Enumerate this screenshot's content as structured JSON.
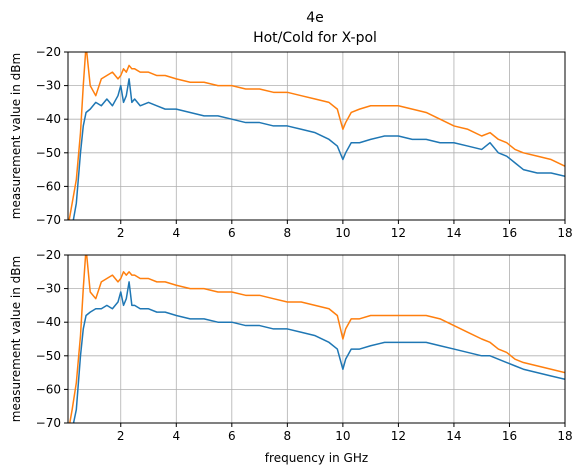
{
  "figure": {
    "title": "4e",
    "subtitle": "Hot/Cold for X-pol"
  },
  "colors": {
    "series_blue": "#1f77b4",
    "series_orange": "#ff7f0e",
    "grid": "#b0b0b0",
    "axis": "#000000"
  },
  "chart_data": [
    {
      "type": "line",
      "ylabel": "measurement value in dBm",
      "xlabel": "",
      "xlim": [
        0.1,
        18
      ],
      "ylim": [
        -70,
        -20
      ],
      "xticks": [
        2,
        4,
        6,
        8,
        10,
        12,
        14,
        16,
        18
      ],
      "yticks": [
        -70,
        -60,
        -50,
        -40,
        -30,
        -20
      ],
      "grid": true,
      "series": [
        {
          "color": "#1f77b4",
          "x": [
            0.1,
            0.25,
            0.4,
            0.55,
            0.65,
            0.75,
            0.9,
            1.1,
            1.3,
            1.5,
            1.7,
            1.9,
            2.0,
            2.1,
            2.2,
            2.3,
            2.4,
            2.5,
            2.7,
            3.0,
            3.3,
            3.6,
            4.0,
            4.5,
            5.0,
            5.5,
            6.0,
            6.5,
            7.0,
            7.5,
            8.0,
            8.5,
            9.0,
            9.5,
            9.8,
            10.0,
            10.1,
            10.3,
            10.6,
            11.0,
            11.5,
            12.0,
            12.5,
            13.0,
            13.5,
            14.0,
            14.5,
            15.0,
            15.3,
            15.6,
            15.9,
            16.2,
            16.5,
            17.0,
            17.5,
            18.0
          ],
          "y": [
            -75,
            -72,
            -65,
            -50,
            -42,
            -38,
            -37,
            -35,
            -36,
            -34,
            -36,
            -33,
            -30,
            -35,
            -33,
            -28,
            -35,
            -34,
            -36,
            -35,
            -36,
            -37,
            -37,
            -38,
            -39,
            -39,
            -40,
            -41,
            -41,
            -42,
            -42,
            -43,
            -44,
            -46,
            -48,
            -52,
            -50,
            -47,
            -47,
            -46,
            -45,
            -45,
            -46,
            -46,
            -47,
            -47,
            -48,
            -49,
            -47,
            -50,
            -51,
            -53,
            -55,
            -56,
            -56,
            -57
          ]
        },
        {
          "color": "#ff7f0e",
          "x": [
            0.1,
            0.25,
            0.4,
            0.55,
            0.65,
            0.75,
            0.9,
            1.1,
            1.3,
            1.5,
            1.7,
            1.9,
            2.0,
            2.1,
            2.2,
            2.3,
            2.4,
            2.5,
            2.7,
            3.0,
            3.3,
            3.6,
            4.0,
            4.5,
            5.0,
            5.5,
            6.0,
            6.5,
            7.0,
            7.5,
            8.0,
            8.5,
            9.0,
            9.5,
            9.8,
            10.0,
            10.1,
            10.3,
            10.6,
            11.0,
            11.5,
            12.0,
            12.5,
            13.0,
            13.5,
            14.0,
            14.5,
            15.0,
            15.3,
            15.6,
            15.9,
            16.2,
            16.5,
            17.0,
            17.5,
            18.0
          ],
          "y": [
            -72,
            -65,
            -58,
            -44,
            -30,
            -18,
            -30,
            -33,
            -28,
            -27,
            -26,
            -28,
            -27,
            -25,
            -26,
            -24,
            -25,
            -25,
            -26,
            -26,
            -27,
            -27,
            -28,
            -29,
            -29,
            -30,
            -30,
            -31,
            -31,
            -32,
            -32,
            -33,
            -34,
            -35,
            -37,
            -43,
            -41,
            -38,
            -37,
            -36,
            -36,
            -36,
            -37,
            -38,
            -40,
            -42,
            -43,
            -45,
            -44,
            -46,
            -47,
            -49,
            -50,
            -51,
            -52,
            -54
          ]
        }
      ]
    },
    {
      "type": "line",
      "ylabel": "measurement value in dBm",
      "xlabel": "frequency in GHz",
      "xlim": [
        0.1,
        18
      ],
      "ylim": [
        -70,
        -20
      ],
      "xticks": [
        2,
        4,
        6,
        8,
        10,
        12,
        14,
        16,
        18
      ],
      "yticks": [
        -70,
        -60,
        -50,
        -40,
        -30,
        -20
      ],
      "grid": true,
      "series": [
        {
          "color": "#1f77b4",
          "x": [
            0.1,
            0.25,
            0.4,
            0.55,
            0.65,
            0.75,
            0.9,
            1.1,
            1.3,
            1.5,
            1.7,
            1.9,
            2.0,
            2.1,
            2.2,
            2.3,
            2.4,
            2.5,
            2.7,
            3.0,
            3.3,
            3.6,
            4.0,
            4.5,
            5.0,
            5.5,
            6.0,
            6.5,
            7.0,
            7.5,
            8.0,
            8.5,
            9.0,
            9.5,
            9.8,
            10.0,
            10.1,
            10.3,
            10.6,
            11.0,
            11.5,
            12.0,
            12.5,
            13.0,
            13.5,
            14.0,
            14.5,
            15.0,
            15.3,
            15.6,
            15.9,
            16.2,
            16.5,
            17.0,
            17.5,
            18.0
          ],
          "y": [
            -76,
            -72,
            -66,
            -50,
            -42,
            -38,
            -37,
            -36,
            -36,
            -35,
            -36,
            -34,
            -31,
            -35,
            -33,
            -28,
            -35,
            -35,
            -36,
            -36,
            -37,
            -37,
            -38,
            -39,
            -39,
            -40,
            -40,
            -41,
            -41,
            -42,
            -42,
            -43,
            -44,
            -46,
            -48,
            -54,
            -51,
            -48,
            -48,
            -47,
            -46,
            -46,
            -46,
            -46,
            -47,
            -48,
            -49,
            -50,
            -50,
            -51,
            -52,
            -53,
            -54,
            -55,
            -56,
            -57
          ]
        },
        {
          "color": "#ff7f0e",
          "x": [
            0.1,
            0.25,
            0.4,
            0.55,
            0.65,
            0.75,
            0.9,
            1.1,
            1.3,
            1.5,
            1.7,
            1.9,
            2.0,
            2.1,
            2.2,
            2.3,
            2.4,
            2.5,
            2.7,
            3.0,
            3.3,
            3.6,
            4.0,
            4.5,
            5.0,
            5.5,
            6.0,
            6.5,
            7.0,
            7.5,
            8.0,
            8.5,
            9.0,
            9.5,
            9.8,
            10.0,
            10.1,
            10.3,
            10.6,
            11.0,
            11.5,
            12.0,
            12.5,
            13.0,
            13.5,
            14.0,
            14.5,
            15.0,
            15.3,
            15.6,
            15.9,
            16.2,
            16.5,
            17.0,
            17.5,
            18.0
          ],
          "y": [
            -73,
            -66,
            -58,
            -44,
            -30,
            -18,
            -31,
            -33,
            -28,
            -27,
            -26,
            -28,
            -27,
            -25,
            -26,
            -25,
            -26,
            -26,
            -27,
            -27,
            -28,
            -28,
            -29,
            -30,
            -30,
            -31,
            -31,
            -32,
            -32,
            -33,
            -34,
            -34,
            -35,
            -36,
            -38,
            -45,
            -42,
            -39,
            -39,
            -38,
            -38,
            -38,
            -38,
            -38,
            -39,
            -41,
            -43,
            -45,
            -46,
            -48,
            -49,
            -51,
            -52,
            -53,
            -54,
            -55
          ]
        }
      ]
    }
  ]
}
